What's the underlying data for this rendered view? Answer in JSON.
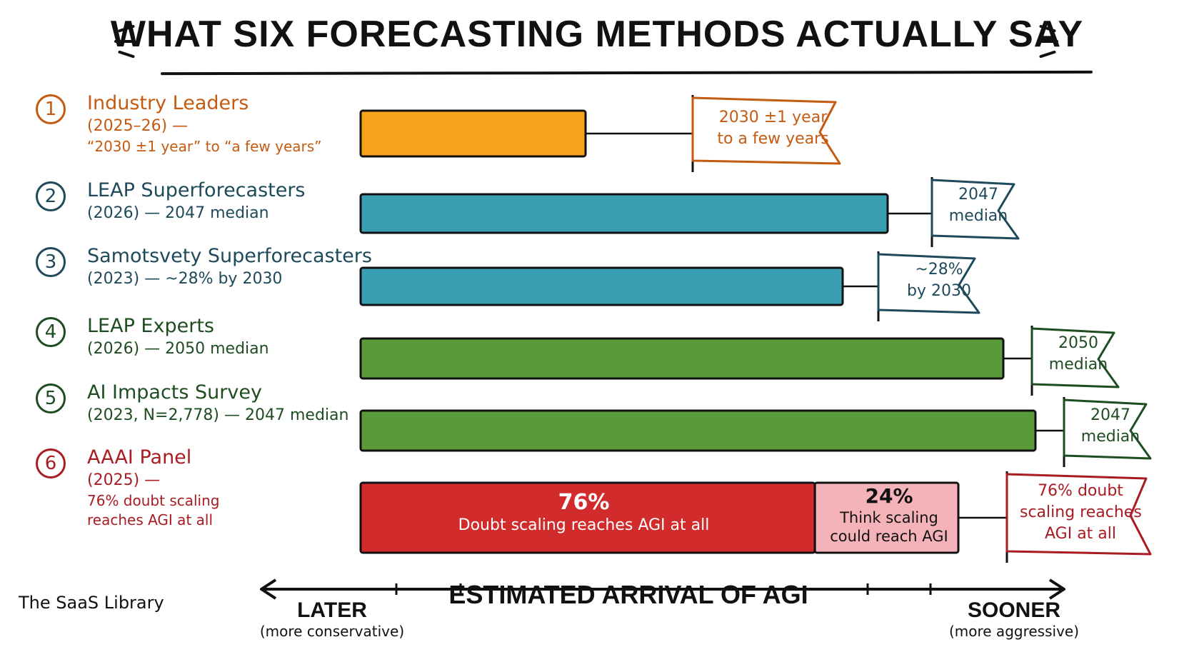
{
  "title": "WHAT SIX FORECASTING METHODS ACTUALLY SAY",
  "colors": {
    "orange": "#f5a31a",
    "orange_text": "#c55a11",
    "teal": "#3a9fb2",
    "teal_text": "#1e4a5c",
    "green": "#5a9a3a",
    "green_text": "#1f4d22",
    "red": "#d22b2b",
    "pink": "#f4b3b8",
    "red_text": "#a81c22"
  },
  "methods": [
    {
      "number": "1",
      "name": "Industry Leaders",
      "sub": "(2025–26) —",
      "sub2": "“2030 ±1 year” to “a few years”",
      "flag": [
        "2030 ±1 year",
        "to a few years"
      ]
    },
    {
      "number": "2",
      "name": "LEAP Superforecasters",
      "sub": "(2026) — 2047 median",
      "flag": [
        "2047",
        "median"
      ]
    },
    {
      "number": "3",
      "name": "Samotsvety Superforecasters",
      "sub": "(2023) — ~28% by 2030",
      "flag": [
        "~28%",
        "by 2030"
      ]
    },
    {
      "number": "4",
      "name": "LEAP Experts",
      "sub": "(2026) — 2050 median",
      "flag": [
        "2050",
        "median"
      ]
    },
    {
      "number": "5",
      "name": "AI Impacts Survey",
      "sub": "(2023, N=2,778) — 2047 median",
      "flag": [
        "2047",
        "median"
      ]
    },
    {
      "number": "6",
      "name": "AAAI Panel",
      "sub": "(2025) —",
      "sub2": "76% doubt scaling",
      "sub3": "reaches AGI at all",
      "flag": [
        "76% doubt",
        "scaling reaches",
        "AGI at all"
      ],
      "segments": [
        {
          "pct": "76%",
          "text": "Doubt scaling reaches AGI at all"
        },
        {
          "pct": "24%",
          "text": "Think scaling",
          "text2": "could reach AGI"
        }
      ]
    }
  ],
  "chart_data": {
    "type": "bar",
    "orientation": "horizontal",
    "categories": [
      "Industry Leaders",
      "LEAP Superforecasters",
      "Samotsvety Superforecasters",
      "LEAP Experts",
      "AI Impacts Survey",
      "AAAI Panel"
    ],
    "values": [
      0.35,
      0.82,
      0.75,
      1.0,
      1.05,
      0.93
    ],
    "segments_row6": [
      76,
      24
    ],
    "x_axis": {
      "label": "ESTIMATED ARRIVAL OF AGI",
      "left": "LATER",
      "left_note": "(more conservative)",
      "right": "SOONER",
      "right_note": "(more aggressive)"
    },
    "grid": false
  },
  "brand": "The SaaS Library"
}
